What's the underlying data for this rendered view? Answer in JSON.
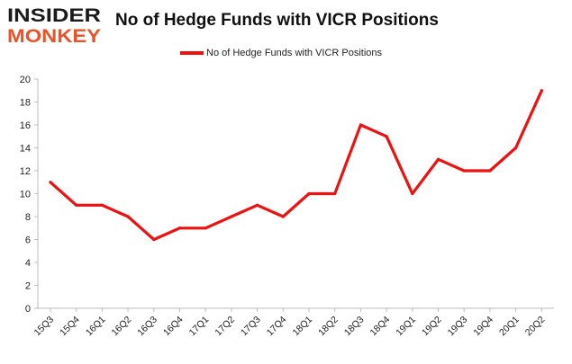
{
  "logo": {
    "line1": "INSIDER",
    "line2": "MONKEY"
  },
  "chart_data": {
    "type": "line",
    "title": "No of Hedge Funds with VICR Positions",
    "xlabel": "",
    "ylabel": "",
    "categories": [
      "15Q3",
      "15Q4",
      "16Q1",
      "16Q2",
      "16Q3",
      "16Q4",
      "17Q1",
      "17Q2",
      "17Q3",
      "17Q4",
      "18Q1",
      "18Q2",
      "18Q3",
      "18Q4",
      "19Q1",
      "19Q2",
      "19Q3",
      "19Q4",
      "20Q1",
      "20Q2"
    ],
    "series": [
      {
        "name": "No of Hedge Funds with VICR Positions",
        "color": "#ee1111",
        "values": [
          11,
          9,
          9,
          8,
          6,
          7,
          7,
          8,
          9,
          8,
          10,
          10,
          16,
          15,
          10,
          13,
          12,
          12,
          14,
          19
        ]
      }
    ],
    "ylim": [
      0,
      20
    ],
    "yticks": [
      0,
      2,
      4,
      6,
      8,
      10,
      12,
      14,
      16,
      18,
      20
    ],
    "grid": false,
    "legend": "top-center"
  }
}
